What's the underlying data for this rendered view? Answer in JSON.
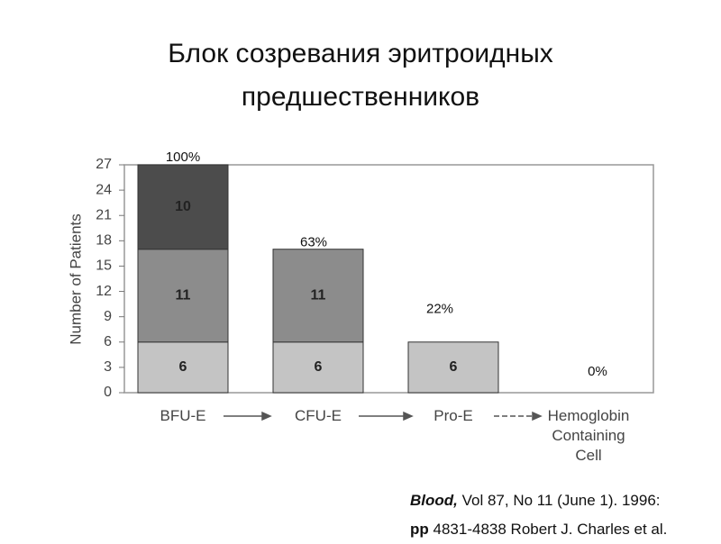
{
  "title": "Блок созревания эритроидных предшественников",
  "chart_data": {
    "type": "stacked_bar",
    "y_label": "Number of Patients",
    "categories": [
      "BFU-E",
      "CFU-E",
      "Pro-E",
      "Hemoglobin Containing Cell"
    ],
    "series": [
      {
        "color": "#c4c4c4",
        "values": [
          6,
          6,
          6,
          0
        ]
      },
      {
        "color": "#8c8c8c",
        "values": [
          11,
          11,
          0,
          0
        ]
      },
      {
        "color": "#4c4c4c",
        "values": [
          10,
          0,
          0,
          0
        ]
      }
    ],
    "annotations": [
      "100%",
      "63%",
      "22%",
      "0%"
    ],
    "ylim": [
      0,
      27
    ],
    "yticks": [
      0,
      3,
      6,
      9,
      12,
      15,
      18,
      21,
      24,
      27
    ]
  },
  "citation": {
    "journal": "Blood,",
    "details": "Vol 87, No 11 (June 1). 1996:",
    "pages_label": "pp",
    "pages": "4831-4838 Robert J. Charles et al."
  }
}
